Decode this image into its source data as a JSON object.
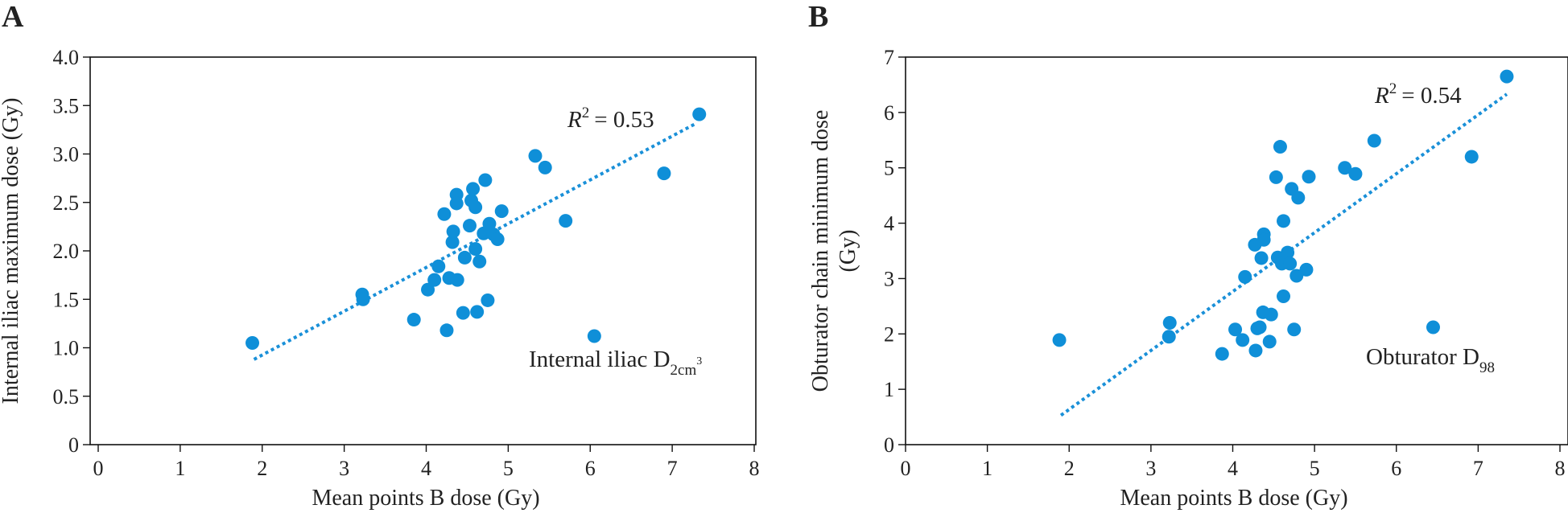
{
  "chart_data": [
    {
      "panel": "A",
      "type": "scatter",
      "xlabel": "Mean points B dose (Gy)",
      "ylabel": "Internal iliac maximum dose (Gy)",
      "xlim": [
        0,
        8
      ],
      "ylim": [
        0,
        4.0
      ],
      "xticks": [
        "0",
        "1",
        "2",
        "3",
        "4",
        "5",
        "6",
        "7",
        "8"
      ],
      "yticks": [
        "0",
        "0.5",
        "1.0",
        "1.5",
        "2.0",
        "2.5",
        "3.0",
        "3.5",
        "4.0"
      ],
      "r2_label": "= 0.53",
      "annotation_main": "Internal iliac D",
      "annotation_sub": "2cm",
      "annotation_sup": "3",
      "trendline": {
        "x": [
          1.9,
          7.3
        ],
        "y": [
          0.88,
          3.32
        ]
      },
      "points": [
        [
          1.88,
          1.05
        ],
        [
          3.22,
          1.55
        ],
        [
          3.23,
          1.5
        ],
        [
          3.85,
          1.29
        ],
        [
          4.02,
          1.6
        ],
        [
          4.1,
          1.7
        ],
        [
          4.15,
          1.84
        ],
        [
          4.22,
          2.38
        ],
        [
          4.25,
          1.18
        ],
        [
          4.28,
          1.72
        ],
        [
          4.32,
          2.09
        ],
        [
          4.33,
          2.2
        ],
        [
          4.37,
          2.58
        ],
        [
          4.37,
          2.49
        ],
        [
          4.38,
          1.7
        ],
        [
          4.45,
          1.36
        ],
        [
          4.47,
          1.93
        ],
        [
          4.53,
          2.26
        ],
        [
          4.55,
          2.52
        ],
        [
          4.57,
          2.64
        ],
        [
          4.6,
          2.45
        ],
        [
          4.6,
          2.02
        ],
        [
          4.62,
          1.37
        ],
        [
          4.65,
          1.89
        ],
        [
          4.7,
          2.18
        ],
        [
          4.72,
          2.73
        ],
        [
          4.75,
          1.49
        ],
        [
          4.77,
          2.28
        ],
        [
          4.82,
          2.17
        ],
        [
          4.87,
          2.12
        ],
        [
          4.92,
          2.41
        ],
        [
          5.33,
          2.98
        ],
        [
          5.45,
          2.86
        ],
        [
          5.7,
          2.31
        ],
        [
          6.05,
          1.12
        ],
        [
          6.9,
          2.8
        ],
        [
          7.33,
          3.41
        ]
      ]
    },
    {
      "panel": "B",
      "type": "scatter",
      "xlabel": "Mean points B dose (Gy)",
      "ylabel_line1": "Obturator chain minimum dose",
      "ylabel_line2": "(Gy)",
      "xlim": [
        0,
        8
      ],
      "ylim": [
        0,
        7
      ],
      "xticks": [
        "0",
        "1",
        "2",
        "3",
        "4",
        "5",
        "6",
        "7",
        "8"
      ],
      "yticks": [
        "0",
        "1",
        "2",
        "3",
        "4",
        "5",
        "6",
        "7"
      ],
      "r2_label": "= 0.54",
      "annotation_main": "Obturator D",
      "annotation_sub": "98",
      "trendline": {
        "x": [
          1.9,
          7.35
        ],
        "y": [
          0.53,
          6.33
        ]
      },
      "points": [
        [
          1.88,
          1.89
        ],
        [
          3.23,
          2.2
        ],
        [
          3.22,
          1.95
        ],
        [
          3.87,
          1.64
        ],
        [
          4.03,
          2.08
        ],
        [
          4.12,
          1.89
        ],
        [
          4.15,
          3.03
        ],
        [
          4.27,
          3.61
        ],
        [
          4.28,
          1.7
        ],
        [
          4.3,
          2.1
        ],
        [
          4.33,
          2.12
        ],
        [
          4.35,
          3.37
        ],
        [
          4.37,
          2.39
        ],
        [
          4.38,
          3.8
        ],
        [
          4.38,
          3.7
        ],
        [
          4.47,
          2.35
        ],
        [
          4.45,
          1.86
        ],
        [
          4.53,
          4.83
        ],
        [
          4.55,
          3.38
        ],
        [
          4.58,
          5.38
        ],
        [
          4.6,
          3.27
        ],
        [
          4.62,
          4.04
        ],
        [
          4.62,
          2.68
        ],
        [
          4.65,
          3.3
        ],
        [
          4.67,
          3.47
        ],
        [
          4.7,
          3.27
        ],
        [
          4.72,
          4.62
        ],
        [
          4.75,
          2.08
        ],
        [
          4.78,
          3.05
        ],
        [
          4.8,
          4.46
        ],
        [
          4.9,
          3.16
        ],
        [
          4.93,
          4.84
        ],
        [
          5.37,
          5.0
        ],
        [
          5.5,
          4.89
        ],
        [
          5.73,
          5.49
        ],
        [
          6.45,
          2.12
        ],
        [
          6.92,
          5.2
        ],
        [
          7.35,
          6.65
        ]
      ]
    }
  ],
  "colors": {
    "marker": "#0f8fd8",
    "trend": "#1a90d8",
    "axis": "#111111"
  }
}
